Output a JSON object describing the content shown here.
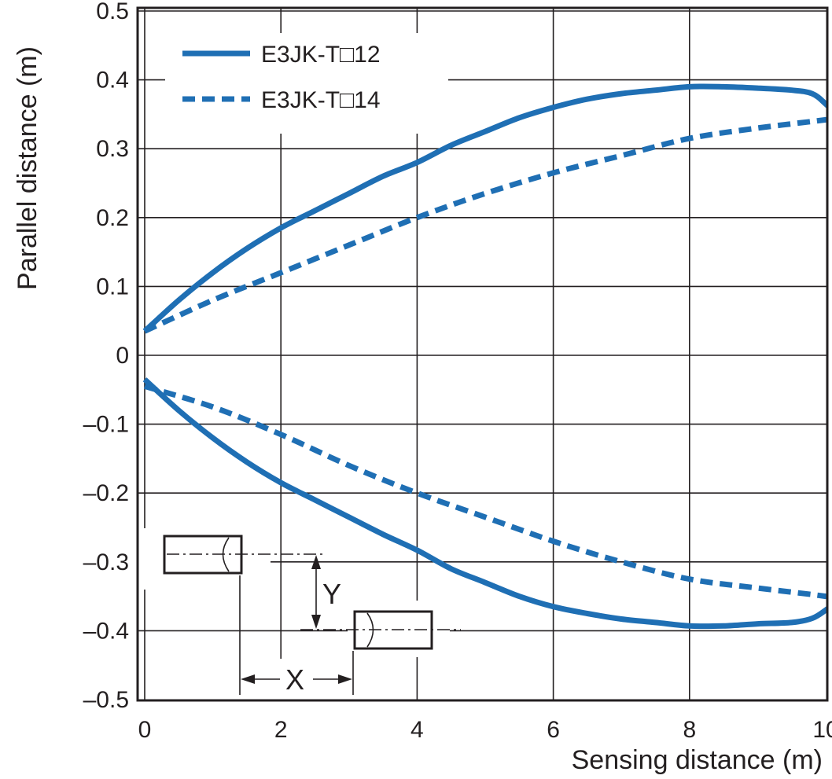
{
  "chart_data": {
    "type": "line",
    "title": "",
    "xlabel": "Sensing distance (m)",
    "ylabel": "Parallel distance (m)",
    "xlim": [
      0,
      10
    ],
    "ylim": [
      -0.5,
      0.5
    ],
    "x_ticks": [
      0,
      2,
      4,
      6,
      8,
      10
    ],
    "x_tick_labels": [
      "0",
      "2",
      "4",
      "6",
      "8",
      "10"
    ],
    "y_ticks": [
      0.5,
      0.4,
      0.3,
      0.2,
      0.1,
      0,
      -0.1,
      -0.2,
      -0.3,
      -0.4,
      -0.5
    ],
    "y_tick_labels": [
      "0.5",
      "0.4",
      "0.3",
      "0.2",
      "0.1",
      "0",
      "–0.1",
      "–0.2",
      "–0.3",
      "–0.4",
      "–0.5"
    ],
    "grid": true,
    "legend_position": "top-left",
    "series": [
      {
        "name": "E3JK-T□12",
        "style": "solid",
        "color": "#1f6fb4",
        "x": [
          0,
          0.5,
          1,
          1.5,
          2,
          2.5,
          3,
          3.5,
          4,
          4.5,
          5,
          5.5,
          6,
          6.5,
          7,
          7.5,
          8,
          8.5,
          9,
          9.5,
          9.8,
          10,
          10.2
        ],
        "y_upper": [
          0.035,
          0.08,
          0.12,
          0.155,
          0.185,
          0.21,
          0.235,
          0.26,
          0.28,
          0.305,
          0.325,
          0.345,
          0.36,
          0.372,
          0.38,
          0.385,
          0.39,
          0.39,
          0.388,
          0.385,
          0.38,
          0.365,
          0.345
        ],
        "y_lower": [
          -0.035,
          -0.08,
          -0.12,
          -0.155,
          -0.185,
          -0.21,
          -0.235,
          -0.26,
          -0.283,
          -0.31,
          -0.33,
          -0.35,
          -0.365,
          -0.375,
          -0.383,
          -0.388,
          -0.393,
          -0.393,
          -0.39,
          -0.388,
          -0.382,
          -0.37,
          -0.355
        ]
      },
      {
        "name": "E3JK-T□14",
        "style": "dashed",
        "color": "#1f6fb4",
        "x": [
          0,
          1,
          2,
          3,
          4,
          5,
          6,
          7,
          8,
          9,
          10,
          10.2
        ],
        "y_upper": [
          0.035,
          0.08,
          0.12,
          0.16,
          0.2,
          0.235,
          0.265,
          0.29,
          0.315,
          0.33,
          0.342,
          0.345
        ],
        "y_lower": [
          -0.045,
          -0.075,
          -0.115,
          -0.16,
          -0.2,
          -0.235,
          -0.27,
          -0.3,
          -0.325,
          -0.338,
          -0.35,
          -0.355
        ]
      }
    ]
  },
  "diagram": {
    "y_label": "Y",
    "x_label": "X"
  }
}
